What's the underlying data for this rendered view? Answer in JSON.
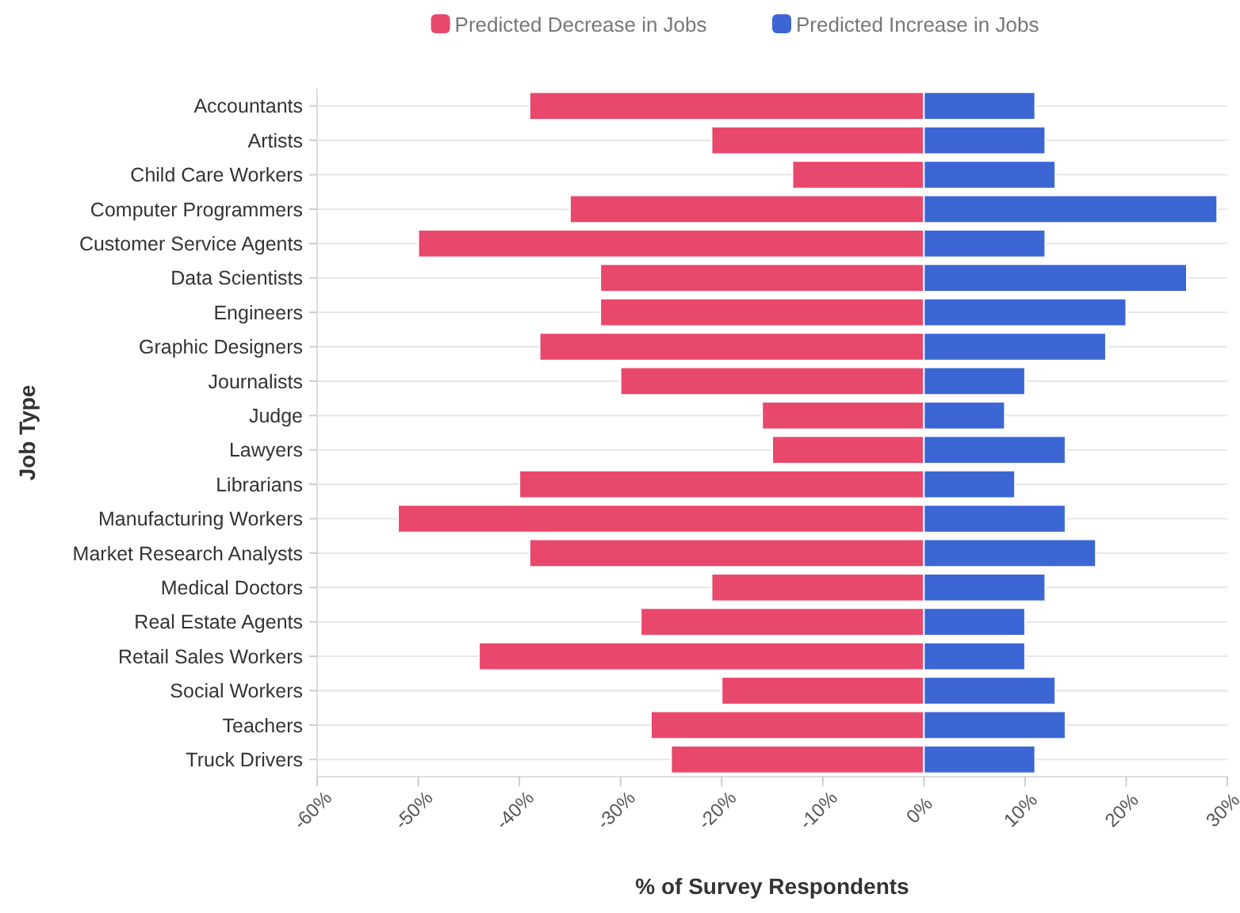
{
  "chart_data": {
    "type": "bar",
    "orientation": "horizontal",
    "stacked": true,
    "xlabel": "% of Survey Respondents",
    "ylabel": "Job Type",
    "categories": [
      "Accountants",
      "Artists",
      "Child Care Workers",
      "Computer Programmers",
      "Customer Service Agents",
      "Data Scientists",
      "Engineers",
      "Graphic Designers",
      "Journalists",
      "Judge",
      "Lawyers",
      "Librarians",
      "Manufacturing Workers",
      "Market Research Analysts",
      "Medical Doctors",
      "Real Estate Agents",
      "Retail Sales Workers",
      "Social Workers",
      "Teachers",
      "Truck Drivers"
    ],
    "series": [
      {
        "name": "Predicted Decrease in Jobs",
        "color": "#e8486c",
        "values": [
          -39,
          -21,
          -13,
          -35,
          -50,
          -32,
          -32,
          -38,
          -30,
          -16,
          -15,
          -40,
          -52,
          -39,
          -21,
          -28,
          -44,
          -20,
          -27,
          -25
        ]
      },
      {
        "name": "Predicted Increase in Jobs",
        "color": "#3b66d4",
        "values": [
          11,
          12,
          13,
          29,
          12,
          26,
          20,
          18,
          10,
          8,
          14,
          9,
          14,
          17,
          12,
          10,
          10,
          13,
          14,
          11
        ]
      }
    ],
    "xlim": [
      -60,
      30
    ],
    "xticks": [
      {
        "value": -60,
        "label": "-60%"
      },
      {
        "value": -50,
        "label": "-50%"
      },
      {
        "value": -40,
        "label": "-40%"
      },
      {
        "value": -30,
        "label": "-30%"
      },
      {
        "value": -20,
        "label": "-20%"
      },
      {
        "value": -10,
        "label": "-10%"
      },
      {
        "value": 0,
        "label": "0%"
      },
      {
        "value": 10,
        "label": "10%"
      },
      {
        "value": 20,
        "label": "20%"
      },
      {
        "value": 30,
        "label": "30%"
      }
    ],
    "grid": "y",
    "legend": "top"
  }
}
